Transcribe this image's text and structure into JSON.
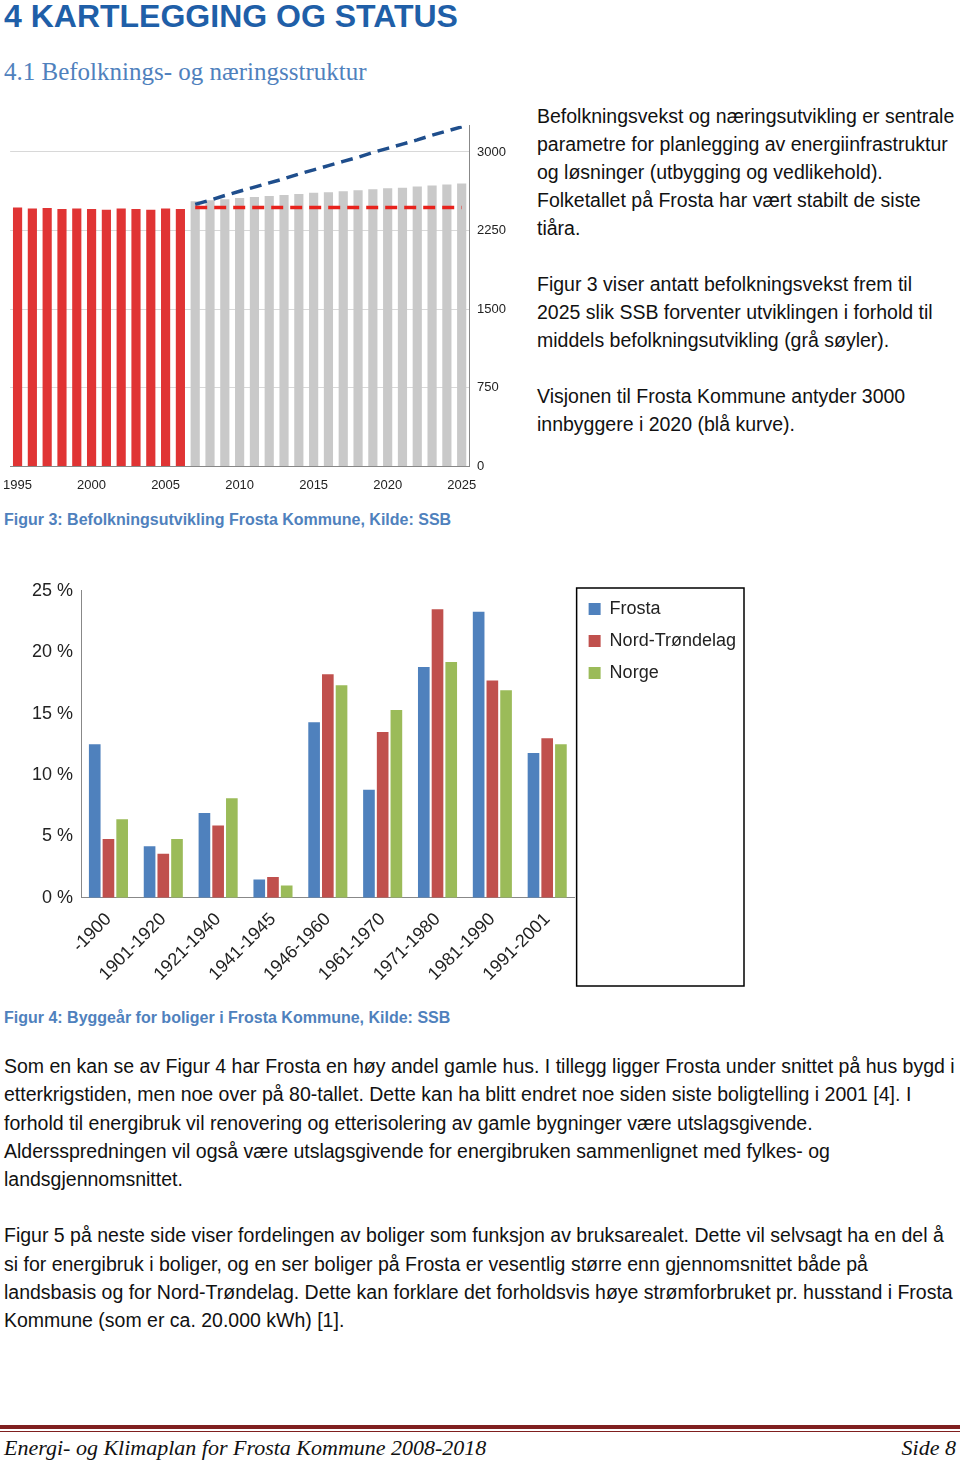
{
  "document": {
    "heading": "4 KARTLEGGING OG STATUS",
    "subheading": "4.1 Befolknings- og næringsstruktur",
    "side_paragraphs": [
      "Befolkningsvekst og næringsutvikling er sentrale parametre for planlegging av energiinfrastruktur og løsninger (utbygging og vedlikehold). Folketallet på Frosta har vært stabilt de siste tiåra.",
      "Figur 3 viser antatt befolkningsvekst frem til 2025 slik SSB forventer utviklingen i forhold til middels befolkningsutvikling (grå søyler).",
      "Visjonen til Frosta Kommune antyder 3000 innbyggere i 2020 (blå kurve)."
    ],
    "captions": [
      "Figur 3: Befolkningsutvikling Frosta Kommune, Kilde: SSB",
      "Figur 4: Byggeår for boliger i Frosta Kommune, Kilde: SSB"
    ],
    "paragraphs": [
      "Som en kan se av Figur 4 har Frosta en høy andel gamle hus. I tillegg ligger Frosta under snittet på hus bygd i etterkrigstiden, men noe over på 80-tallet. Dette kan ha blitt endret noe siden siste boligtelling i 2001 [4]. I forhold til energibruk vil renovering og etterisolering av gamle bygninger være utslagsgivende. Aldersspredningen vil også være utslagsgivende for energibruken sammenlignet med fylkes- og landsgjennomsnittet.",
      "Figur 5 på neste side viser fordelingen av boliger som funksjon av bruksarealet. Dette vil selvsagt ha en del å si for energibruk i boliger, og en ser boliger på Frosta er vesentlig større enn gjennomsnittet både på landsbasis og for Nord-Trøndelag. Dette kan forklare det forholdsvis høye strømforbruket pr. husstand i Frosta Kommune (som er ca. 20.000 kWh) [1]."
    ],
    "footer": {
      "left": "Energi- og Klimaplan for Frosta Kommune 2008-2018",
      "right": "Side 8"
    }
  },
  "chart_data": [
    {
      "type": "bar",
      "categories": [
        1995,
        null,
        null,
        null,
        null,
        2000,
        null,
        null,
        null,
        null,
        2005,
        null,
        null,
        null,
        null,
        2010,
        null,
        null,
        null,
        null,
        2015,
        null,
        null,
        null,
        null,
        2020,
        null,
        null,
        null,
        null,
        2025
      ],
      "series": [
        {
          "type": "bar",
          "values": [
            2470,
            2460,
            2465,
            2455,
            2460,
            2455,
            2450,
            2460,
            2455,
            2450,
            2460,
            2455,
            2530,
            2540,
            2550,
            2560,
            2570,
            2580,
            2590,
            2600,
            2610,
            2615,
            2625,
            2635,
            2645,
            2655,
            2660,
            2670,
            2680,
            2690,
            2700
          ],
          "colors": [
            "#e03434",
            "#e03434",
            "#e03434",
            "#e03434",
            "#e03434",
            "#e03434",
            "#e03434",
            "#e03434",
            "#e03434",
            "#e03434",
            "#e03434",
            "#e03434",
            "#c9c9c9",
            "#c9c9c9",
            "#c9c9c9",
            "#c9c9c9",
            "#c9c9c9",
            "#c9c9c9",
            "#c9c9c9",
            "#c9c9c9",
            "#c9c9c9",
            "#c9c9c9",
            "#c9c9c9",
            "#c9c9c9",
            "#c9c9c9",
            "#c9c9c9",
            "#c9c9c9",
            "#c9c9c9",
            "#c9c9c9",
            "#c9c9c9",
            "#c9c9c9"
          ]
        },
        {
          "type": "line",
          "color": "#e8221c",
          "line_style": "dashed",
          "values": [
            null,
            null,
            null,
            null,
            null,
            null,
            null,
            null,
            null,
            null,
            null,
            null,
            2470,
            2470,
            2470,
            2470,
            2470,
            2470,
            2470,
            2470,
            2470,
            2470,
            2470,
            2470,
            2470,
            2470,
            2470,
            2470,
            2470,
            2470,
            2470
          ]
        },
        {
          "type": "line",
          "color": "#1f4e8c",
          "line_style": "dashed",
          "values": [
            null,
            null,
            null,
            null,
            null,
            null,
            null,
            null,
            null,
            null,
            null,
            null,
            2500,
            2540,
            2585,
            2625,
            2665,
            2705,
            2745,
            2790,
            2830,
            2870,
            2910,
            2950,
            2995,
            3035,
            3075,
            3115,
            3160,
            3200,
            3240
          ]
        }
      ],
      "ylim": [
        0,
        3250
      ],
      "yticks": [
        0,
        750,
        1500,
        2250,
        3000
      ],
      "grid": true
    },
    {
      "type": "bar",
      "categories": [
        "-1900",
        "1901-1920",
        "1921-1940",
        "1941-1945",
        "1946-1960",
        "1961-1970",
        "1971-1980",
        "1981-1990",
        "1991-2001"
      ],
      "series": [
        {
          "name": "Frosta",
          "color": "#4f81bd",
          "values": [
            12.5,
            4.2,
            6.9,
            1.5,
            14.3,
            8.8,
            18.8,
            23.3,
            11.8
          ]
        },
        {
          "name": "Nord-Trøndelag",
          "color": "#c0504d",
          "values": [
            4.8,
            3.6,
            5.9,
            1.7,
            18.2,
            13.5,
            23.5,
            17.7,
            13.0
          ]
        },
        {
          "name": "Norge",
          "color": "#9bbb59",
          "values": [
            6.4,
            4.8,
            8.1,
            1.0,
            17.3,
            15.3,
            19.2,
            16.9,
            12.5
          ]
        }
      ],
      "ylim": [
        0,
        25
      ],
      "yticks": [
        {
          "value": 0,
          "label": "0 %"
        },
        {
          "value": 5,
          "label": "5 %"
        },
        {
          "value": 10,
          "label": "10 %"
        },
        {
          "value": 15,
          "label": "15 %"
        },
        {
          "value": 20,
          "label": "20 %"
        },
        {
          "value": 25,
          "label": "25 %"
        }
      ],
      "grid": false,
      "legend": "right"
    }
  ]
}
